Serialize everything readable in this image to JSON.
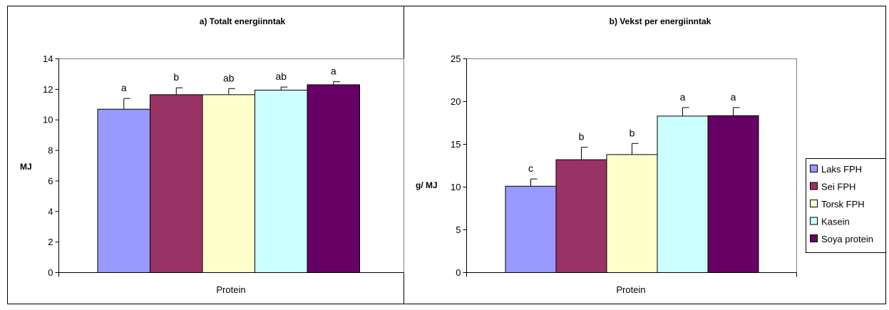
{
  "chart_data": [
    {
      "type": "bar",
      "title": "a) Totalt energiinntak",
      "xlabel": "Protein",
      "ylabel": "MJ",
      "ylim": [
        0,
        14
      ],
      "yticks": [
        0,
        2,
        4,
        6,
        8,
        10,
        12,
        14
      ],
      "grid": false,
      "categories": [
        "Protein"
      ],
      "series": [
        {
          "name": "Laks FPH",
          "values": [
            10.7
          ],
          "error": [
            0.7
          ],
          "letter": "a"
        },
        {
          "name": "Sei FPH",
          "values": [
            11.65
          ],
          "error": [
            0.45
          ],
          "letter": "b"
        },
        {
          "name": "Torsk FPH",
          "values": [
            11.65
          ],
          "error": [
            0.4
          ],
          "letter": "ab"
        },
        {
          "name": "Kasein",
          "values": [
            11.95
          ],
          "error": [
            0.2
          ],
          "letter": "ab"
        },
        {
          "name": "Soya protein",
          "values": [
            12.3
          ],
          "error": [
            0.2
          ],
          "letter": "a"
        }
      ]
    },
    {
      "type": "bar",
      "title": "b) Vekst per energiinntak",
      "xlabel": "Protein",
      "ylabel": "g/ MJ",
      "ylim": [
        0,
        25
      ],
      "yticks": [
        0,
        5,
        10,
        15,
        20,
        25
      ],
      "grid": false,
      "legend": "right",
      "categories": [
        "Protein"
      ],
      "series": [
        {
          "name": "Laks FPH",
          "values": [
            10.1
          ],
          "error": [
            0.85
          ],
          "letter": "c"
        },
        {
          "name": "Sei FPH",
          "values": [
            13.2
          ],
          "error": [
            1.45
          ],
          "letter": "b"
        },
        {
          "name": "Torsk FPH",
          "values": [
            13.8
          ],
          "error": [
            1.3
          ],
          "letter": "b"
        },
        {
          "name": "Kasein",
          "values": [
            18.3
          ],
          "error": [
            1.0
          ],
          "letter": "a"
        },
        {
          "name": "Soya protein",
          "values": [
            18.35
          ],
          "error": [
            0.95
          ],
          "letter": "a"
        }
      ]
    }
  ],
  "colors": {
    "Laks FPH": "#9999ff",
    "Sei FPH": "#993366",
    "Torsk FPH": "#ffffcc",
    "Kasein": "#ccffff",
    "Soya protein": "#660066"
  }
}
